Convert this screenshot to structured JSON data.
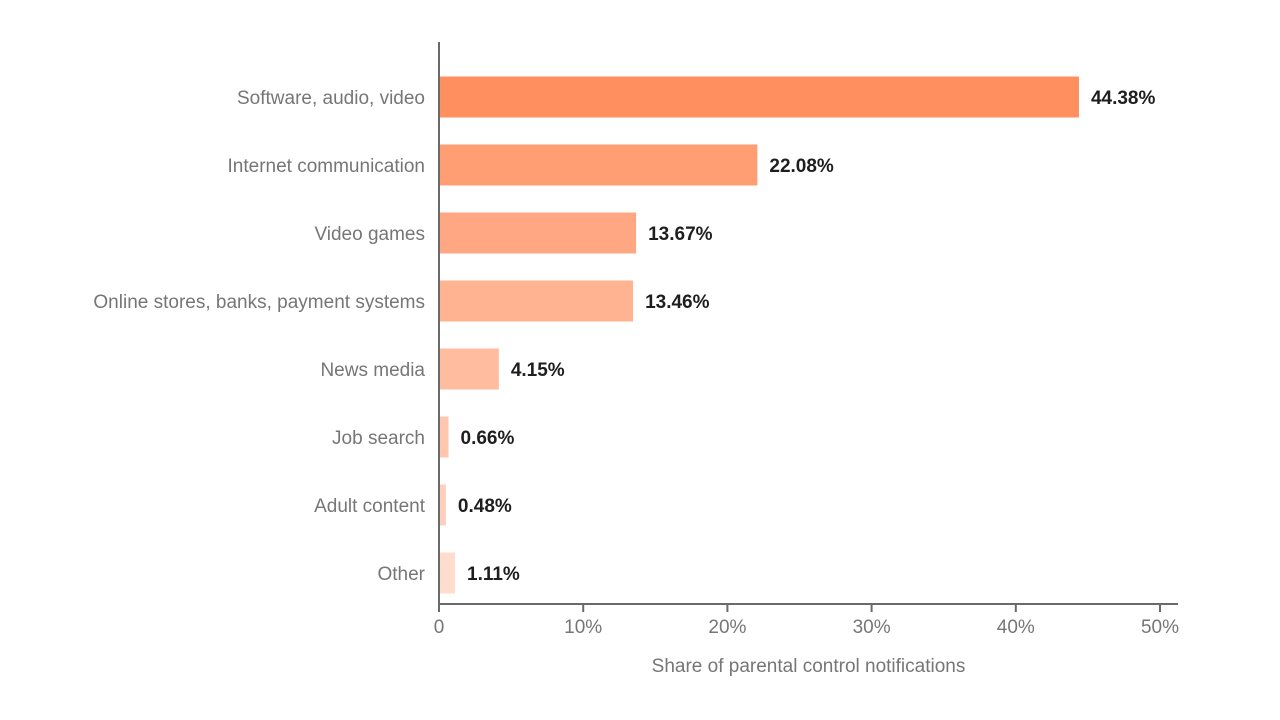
{
  "chart_data": {
    "type": "bar",
    "orientation": "horizontal",
    "title": "",
    "categories": [
      "Software, audio, video",
      "Internet communication",
      "Video games",
      "Online stores, banks, payment systems",
      "News media",
      "Job search",
      "Adult content",
      "Other"
    ],
    "values": [
      44.38,
      22.08,
      13.67,
      13.46,
      4.15,
      0.66,
      0.48,
      1.11
    ],
    "value_labels": [
      "44.38%",
      "22.08%",
      "13.67%",
      "13.46%",
      "4.15%",
      "0.66%",
      "0.48%",
      "1.11%"
    ],
    "bar_colors": [
      "#ff8f5e",
      "#ff9e73",
      "#ffa782",
      "#ffb391",
      "#ffbc9f",
      "#ffc6b0",
      "#ffcfbd",
      "#ffdccd"
    ],
    "xlabel": "Share of parental control notifications",
    "ylabel": "",
    "xlim": [
      0,
      50
    ],
    "xticks": [
      0,
      10,
      20,
      30,
      40,
      50
    ],
    "xtick_labels": [
      "0",
      "10%",
      "20%",
      "30%",
      "40%",
      "50%"
    ],
    "grid": false,
    "legend": "none"
  }
}
